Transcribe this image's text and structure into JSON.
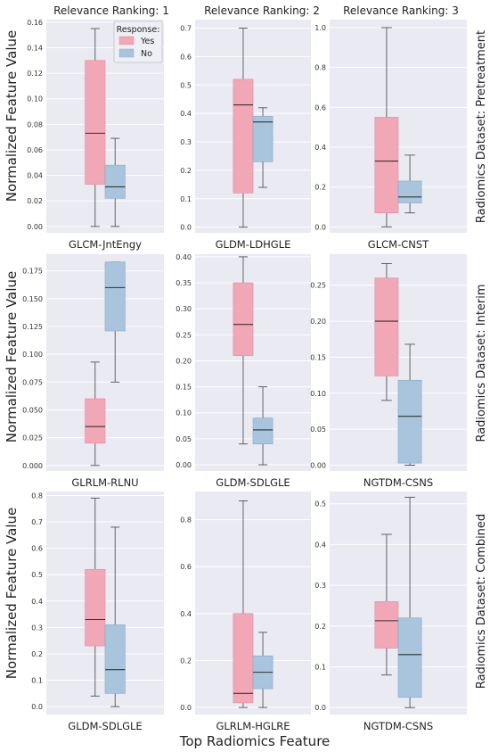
{
  "figure": {
    "xlabel": "Top Radiomics Feature",
    "ylabel": "Normalized Feature Value",
    "legend": {
      "title": "Response:",
      "items": [
        "Yes",
        "No"
      ],
      "placement": "top-right of first panel"
    },
    "colors": {
      "yes": "#f2a7b6",
      "no": "#a9c4dd",
      "panel_bg": "#e9eaf2",
      "grid": "#ffffff",
      "median": "#333333"
    },
    "column_titles": [
      "Relevance Ranking: 1",
      "Relevance Ranking: 2",
      "Relevance Ranking: 3"
    ],
    "row_titles": [
      "Radiomics Dataset: Pretreatment",
      "Radiomics Dataset: Interim",
      "Radiomics Dataset: Combined"
    ]
  },
  "chart_data": [
    {
      "type": "box",
      "row": 0,
      "col": 0,
      "feature": "GLCM-JntEngy",
      "ylim": [
        -0.005,
        0.162
      ],
      "yticks": [
        0.0,
        0.02,
        0.04,
        0.06,
        0.08,
        0.1,
        0.12,
        0.14,
        0.16
      ],
      "ytick_decimals": 2,
      "series": [
        {
          "name": "Yes",
          "min": 0.0,
          "q1": 0.033,
          "median": 0.073,
          "q3": 0.13,
          "max": 0.155
        },
        {
          "name": "No",
          "min": 0.0,
          "q1": 0.022,
          "median": 0.031,
          "q3": 0.048,
          "max": 0.069
        }
      ]
    },
    {
      "type": "box",
      "row": 0,
      "col": 1,
      "feature": "GLDM-LDHGLE",
      "ylim": [
        -0.02,
        0.73
      ],
      "yticks": [
        0.0,
        0.1,
        0.2,
        0.3,
        0.4,
        0.5,
        0.6,
        0.7
      ],
      "ytick_decimals": 1,
      "series": [
        {
          "name": "Yes",
          "min": 0.0,
          "q1": 0.12,
          "median": 0.43,
          "q3": 0.52,
          "max": 0.7
        },
        {
          "name": "No",
          "min": 0.14,
          "q1": 0.23,
          "median": 0.37,
          "q3": 0.39,
          "max": 0.42
        }
      ]
    },
    {
      "type": "box",
      "row": 0,
      "col": 2,
      "feature": "GLCM-CNST",
      "ylim": [
        -0.03,
        1.04
      ],
      "yticks": [
        0.0,
        0.2,
        0.4,
        0.6,
        0.8,
        1.0
      ],
      "ytick_decimals": 1,
      "series": [
        {
          "name": "Yes",
          "min": 0.0,
          "q1": 0.07,
          "median": 0.33,
          "q3": 0.55,
          "max": 1.0
        },
        {
          "name": "No",
          "min": 0.07,
          "q1": 0.12,
          "median": 0.15,
          "q3": 0.23,
          "max": 0.36
        }
      ]
    },
    {
      "type": "box",
      "row": 1,
      "col": 0,
      "feature": "GLRLM-RLNU",
      "ylim": [
        -0.005,
        0.19
      ],
      "yticks": [
        0.0,
        0.025,
        0.05,
        0.075,
        0.1,
        0.125,
        0.15,
        0.175
      ],
      "ytick_decimals": 3,
      "series": [
        {
          "name": "Yes",
          "min": 0.0,
          "q1": 0.02,
          "median": 0.035,
          "q3": 0.06,
          "max": 0.093
        },
        {
          "name": "No",
          "min": 0.075,
          "q1": 0.121,
          "median": 0.16,
          "q3": 0.183,
          "max": 0.183
        }
      ]
    },
    {
      "type": "box",
      "row": 1,
      "col": 1,
      "feature": "GLDM-SDLGLE",
      "ylim": [
        -0.012,
        0.405
      ],
      "yticks": [
        0.0,
        0.05,
        0.1,
        0.15,
        0.2,
        0.25,
        0.3,
        0.35,
        0.4
      ],
      "ytick_decimals": 2,
      "series": [
        {
          "name": "Yes",
          "min": 0.04,
          "q1": 0.21,
          "median": 0.27,
          "q3": 0.35,
          "max": 0.4
        },
        {
          "name": "No",
          "min": 0.0,
          "q1": 0.04,
          "median": 0.067,
          "q3": 0.09,
          "max": 0.15
        }
      ]
    },
    {
      "type": "box",
      "row": 1,
      "col": 2,
      "feature": "NGTDM-CSNS",
      "ylim": [
        -0.008,
        0.293
      ],
      "yticks": [
        0.0,
        0.05,
        0.1,
        0.15,
        0.2,
        0.25
      ],
      "ytick_decimals": 2,
      "series": [
        {
          "name": "Yes",
          "min": 0.09,
          "q1": 0.124,
          "median": 0.2,
          "q3": 0.26,
          "max": 0.28
        },
        {
          "name": "No",
          "min": 0.0,
          "q1": 0.003,
          "median": 0.068,
          "q3": 0.118,
          "max": 0.168
        }
      ]
    },
    {
      "type": "box",
      "row": 2,
      "col": 0,
      "feature": "GLDM-SDLGLE",
      "ylim": [
        -0.03,
        0.815
      ],
      "yticks": [
        0.0,
        0.1,
        0.2,
        0.3,
        0.4,
        0.5,
        0.6,
        0.7,
        0.8
      ],
      "ytick_decimals": 1,
      "series": [
        {
          "name": "Yes",
          "min": 0.04,
          "q1": 0.23,
          "median": 0.33,
          "q3": 0.52,
          "max": 0.79
        },
        {
          "name": "No",
          "min": 0.0,
          "q1": 0.05,
          "median": 0.14,
          "q3": 0.31,
          "max": 0.68
        }
      ]
    },
    {
      "type": "box",
      "row": 2,
      "col": 1,
      "feature": "GLRLM-HGLRE",
      "ylim": [
        -0.03,
        0.92
      ],
      "yticks": [
        0.0,
        0.2,
        0.4,
        0.6,
        0.8
      ],
      "ytick_decimals": 1,
      "series": [
        {
          "name": "Yes",
          "min": 0.0,
          "q1": 0.02,
          "median": 0.06,
          "q3": 0.4,
          "max": 0.88
        },
        {
          "name": "No",
          "min": 0.0,
          "q1": 0.08,
          "median": 0.15,
          "q3": 0.22,
          "max": 0.32
        }
      ]
    },
    {
      "type": "box",
      "row": 2,
      "col": 2,
      "feature": "NGTDM-CSNS",
      "ylim": [
        -0.017,
        0.53
      ],
      "yticks": [
        0.0,
        0.1,
        0.2,
        0.3,
        0.4,
        0.5
      ],
      "ytick_decimals": 1,
      "series": [
        {
          "name": "Yes",
          "min": 0.08,
          "q1": 0.146,
          "median": 0.213,
          "q3": 0.26,
          "max": 0.425
        },
        {
          "name": "No",
          "min": 0.0,
          "q1": 0.025,
          "median": 0.13,
          "q3": 0.22,
          "max": 0.516
        }
      ]
    }
  ]
}
